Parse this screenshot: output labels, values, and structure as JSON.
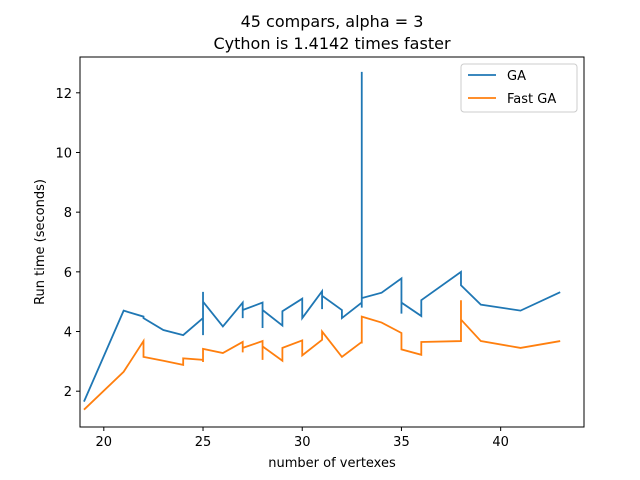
{
  "chart_data": {
    "type": "line",
    "title": "45 compars, alpha = 3",
    "subtitle": "Cython is 1.4142 times faster",
    "xlabel": "number of vertexes",
    "ylabel": "Run time (seconds)",
    "xlim": [
      18.8,
      44.2
    ],
    "ylim": [
      0.8,
      13.2
    ],
    "xticks": [
      20,
      25,
      30,
      35,
      40
    ],
    "yticks": [
      2,
      4,
      6,
      8,
      10,
      12
    ],
    "grid": false,
    "legend_position": "top-right",
    "series": [
      {
        "name": "GA",
        "color": "#1f77b4",
        "x": [
          19,
          21,
          22,
          22,
          23,
          24,
          25,
          25,
          25,
          25,
          26,
          27,
          27,
          27,
          28,
          28,
          28,
          29,
          29,
          30,
          30,
          31,
          31,
          31,
          32,
          32,
          33,
          33,
          33,
          33,
          33,
          34,
          35,
          35,
          35,
          36,
          36,
          38,
          38,
          38,
          39,
          41,
          43
        ],
        "y": [
          1.65,
          4.7,
          4.5,
          4.45,
          4.05,
          3.88,
          4.45,
          3.88,
          5.33,
          5.0,
          4.17,
          4.97,
          4.45,
          4.72,
          4.97,
          4.12,
          4.72,
          4.2,
          4.68,
          5.1,
          4.45,
          5.35,
          4.75,
          5.2,
          4.72,
          4.45,
          4.97,
          12.7,
          4.8,
          12.7,
          5.12,
          5.3,
          5.78,
          4.6,
          4.97,
          4.52,
          5.05,
          6.0,
          5.7,
          5.55,
          4.9,
          4.7,
          5.32
        ]
      },
      {
        "name": "Fast GA",
        "color": "#ff7f0e",
        "x": [
          19,
          21,
          22,
          22,
          23,
          24,
          24,
          25,
          25,
          25,
          26,
          27,
          27,
          27,
          28,
          28,
          28,
          29,
          29,
          30,
          30,
          31,
          31,
          32,
          33,
          33,
          33,
          33,
          34,
          35,
          35,
          36,
          36,
          38,
          38,
          38,
          39,
          41,
          43
        ],
        "y": [
          1.38,
          2.65,
          3.68,
          3.15,
          3.02,
          2.88,
          3.1,
          3.05,
          2.98,
          3.42,
          3.28,
          3.65,
          3.3,
          3.45,
          3.68,
          3.05,
          3.5,
          3.02,
          3.45,
          3.7,
          3.2,
          3.72,
          4.0,
          3.15,
          3.65,
          4.2,
          3.6,
          4.5,
          4.3,
          3.95,
          3.4,
          3.22,
          3.65,
          3.68,
          5.05,
          4.4,
          3.68,
          3.45,
          3.68
        ]
      }
    ]
  }
}
